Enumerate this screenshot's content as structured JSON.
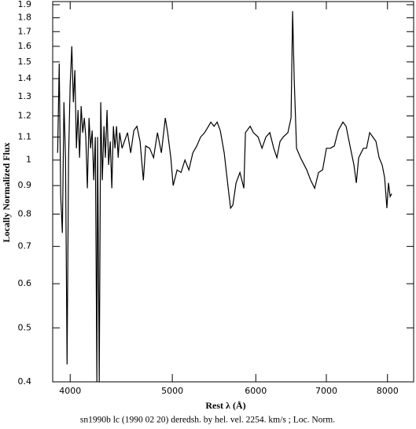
{
  "chart_data": {
    "type": "line",
    "xlabel": "Rest λ (Å)",
    "ylabel": "Locally Normalized Flux",
    "caption": "sn1990b lc (1990 02 20) deredsh. by hel. vel.  2254. km/s ;  Loc. Norm.",
    "xscale": "log",
    "yscale": "log",
    "color": "#000000",
    "xlim": [
      3850,
      8485
    ],
    "ylim": [
      0.4,
      1.9
    ],
    "xticks": [
      4000,
      5000,
      6000,
      7000,
      8000
    ],
    "yticks": [
      0.4,
      0.5,
      0.6,
      0.7,
      0.8,
      0.9,
      1,
      1.1,
      1.2,
      1.3,
      1.4,
      1.5,
      1.6,
      1.7,
      1.8,
      1.9
    ],
    "x": [
      3892,
      3905,
      3918,
      3932,
      3946,
      3959,
      3973,
      3986,
      4000,
      4014,
      4028,
      4041,
      4055,
      4069,
      4083,
      4097,
      4111,
      4125,
      4139,
      4153,
      4168,
      4182,
      4197,
      4211,
      4226,
      4240,
      4247,
      4262,
      4276,
      4291,
      4306,
      4320,
      4335,
      4350,
      4366,
      4381,
      4396,
      4411,
      4426,
      4442,
      4457,
      4480,
      4503,
      4534,
      4565,
      4597,
      4628,
      4660,
      4693,
      4717,
      4758,
      4799,
      4840,
      4882,
      4924,
      4949,
      4983,
      5009,
      5052,
      5096,
      5140,
      5184,
      5229,
      5274,
      5319,
      5365,
      5411,
      5439,
      5477,
      5514,
      5552,
      5600,
      5649,
      5678,
      5707,
      5747,
      5796,
      5846,
      5866,
      5927,
      5968,
      6030,
      6082,
      6134,
      6187,
      6240,
      6283,
      6326,
      6370,
      6436,
      6480,
      6503,
      6525,
      6559,
      6615,
      6707,
      6765,
      6823,
      6882,
      6942,
      7001,
      7061,
      7122,
      7184,
      7258,
      7308,
      7372,
      7435,
      7474,
      7512,
      7590,
      7642,
      7695,
      7748,
      7801,
      7855,
      7908,
      7950,
      7990,
      8018,
      8046,
      8074
    ],
    "values": [
      1.03,
      1.49,
      0.86,
      0.74,
      1.27,
      1.01,
      0.43,
      1.01,
      1.36,
      1.6,
      1.27,
      1.45,
      1.05,
      1.23,
      1.01,
      1.25,
      1.12,
      1.19,
      1.1,
      0.89,
      1.19,
      1.05,
      1.13,
      0.92,
      1.1,
      0.4,
      1.1,
      0.4,
      1.27,
      0.92,
      1.15,
      1.01,
      1.23,
      0.98,
      1.08,
      0.89,
      1.15,
      1.05,
      1.15,
      1.01,
      1.12,
      1.05,
      1.08,
      1.12,
      1.03,
      1.13,
      1.15,
      1.08,
      0.92,
      1.06,
      1.05,
      1.01,
      1.12,
      1.03,
      1.19,
      1.12,
      1.01,
      0.9,
      0.96,
      0.95,
      1.0,
      0.96,
      1.03,
      1.06,
      1.1,
      1.12,
      1.15,
      1.17,
      1.15,
      1.17,
      1.13,
      1.03,
      0.89,
      0.82,
      0.83,
      0.91,
      0.95,
      0.89,
      1.12,
      1.15,
      1.12,
      1.1,
      1.05,
      1.1,
      1.12,
      1.05,
      1.01,
      1.08,
      1.1,
      1.12,
      1.19,
      1.85,
      1.4,
      1.05,
      1.01,
      0.96,
      0.92,
      0.89,
      0.95,
      0.96,
      1.05,
      1.05,
      1.06,
      1.13,
      1.17,
      1.15,
      1.06,
      0.98,
      0.91,
      1.01,
      1.05,
      1.05,
      1.12,
      1.1,
      1.08,
      1.01,
      0.98,
      0.93,
      0.82,
      0.91,
      0.86,
      0.87
    ]
  }
}
